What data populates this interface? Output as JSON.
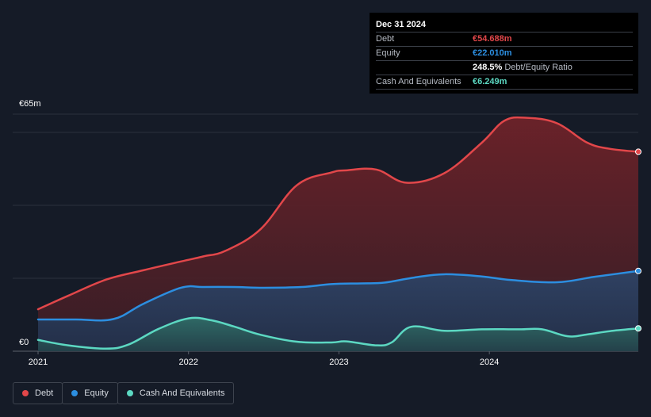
{
  "chart_data": {
    "type": "area",
    "title": "",
    "xlabel": "",
    "ylabel": "",
    "y_axis_labels": [
      "€65m",
      "€0"
    ],
    "ylim": [
      0,
      65
    ],
    "xlim": [
      2021,
      2025
    ],
    "x_ticks": [
      {
        "value": 2021,
        "label": "2021"
      },
      {
        "value": 2022,
        "label": "2022"
      },
      {
        "value": 2023,
        "label": "2023"
      },
      {
        "value": 2024,
        "label": "2024"
      }
    ],
    "grid": true,
    "legend_position": "bottom-left",
    "series": [
      {
        "name": "Debt",
        "key": "debt",
        "color": "#e2474a",
        "fill": "#5a2027",
        "points": [
          [
            2021.0,
            11.5
          ],
          [
            2021.2,
            15.2
          ],
          [
            2021.45,
            19.6
          ],
          [
            2021.7,
            22.2
          ],
          [
            2021.95,
            24.6
          ],
          [
            2022.1,
            26.0
          ],
          [
            2022.25,
            27.6
          ],
          [
            2022.48,
            33.5
          ],
          [
            2022.72,
            45.5
          ],
          [
            2022.95,
            49.0
          ],
          [
            2023.05,
            49.6
          ],
          [
            2023.25,
            49.8
          ],
          [
            2023.45,
            46.2
          ],
          [
            2023.7,
            48.8
          ],
          [
            2023.95,
            57.2
          ],
          [
            2024.1,
            63.2
          ],
          [
            2024.25,
            64.0
          ],
          [
            2024.45,
            62.5
          ],
          [
            2024.65,
            57.2
          ],
          [
            2024.8,
            55.5
          ],
          [
            2024.99,
            54.688
          ]
        ]
      },
      {
        "name": "Equity",
        "key": "equity",
        "color": "#2c8ee0",
        "fill": "#283955",
        "points": [
          [
            2021.0,
            8.7
          ],
          [
            2021.25,
            8.7
          ],
          [
            2021.5,
            8.8
          ],
          [
            2021.7,
            13.0
          ],
          [
            2021.95,
            17.4
          ],
          [
            2022.1,
            17.6
          ],
          [
            2022.3,
            17.6
          ],
          [
            2022.5,
            17.4
          ],
          [
            2022.75,
            17.6
          ],
          [
            2022.95,
            18.4
          ],
          [
            2023.15,
            18.6
          ],
          [
            2023.3,
            18.8
          ],
          [
            2023.5,
            20.2
          ],
          [
            2023.7,
            21.1
          ],
          [
            2023.95,
            20.5
          ],
          [
            2024.15,
            19.5
          ],
          [
            2024.45,
            18.9
          ],
          [
            2024.7,
            20.4
          ],
          [
            2024.99,
            22.01
          ]
        ]
      },
      {
        "name": "Cash And Equivalents",
        "key": "cash",
        "color": "#5cd8c2",
        "fill": "#2a4d4f",
        "points": [
          [
            2021.0,
            3.1
          ],
          [
            2021.2,
            1.6
          ],
          [
            2021.45,
            0.7
          ],
          [
            2021.6,
            1.8
          ],
          [
            2021.8,
            6.1
          ],
          [
            2022.0,
            9.0
          ],
          [
            2022.15,
            8.5
          ],
          [
            2022.3,
            6.8
          ],
          [
            2022.48,
            4.5
          ],
          [
            2022.72,
            2.6
          ],
          [
            2022.95,
            2.4
          ],
          [
            2023.05,
            2.7
          ],
          [
            2023.25,
            1.6
          ],
          [
            2023.35,
            2.4
          ],
          [
            2023.48,
            6.7
          ],
          [
            2023.7,
            5.6
          ],
          [
            2023.95,
            6.0
          ],
          [
            2024.2,
            6.0
          ],
          [
            2024.35,
            6.0
          ],
          [
            2024.52,
            4.1
          ],
          [
            2024.65,
            4.6
          ],
          [
            2024.8,
            5.5
          ],
          [
            2024.99,
            6.249
          ]
        ]
      }
    ]
  },
  "tooltip": {
    "date": "Dec 31 2024",
    "rows": [
      {
        "label": "Debt",
        "value": "€54.688m",
        "color": "#e2474a"
      },
      {
        "label": "Equity",
        "value": "€22.010m",
        "color": "#2c8ee0"
      },
      {
        "label": "",
        "value": "248.5%",
        "extra": "Debt/Equity Ratio",
        "color": "#ffffff"
      },
      {
        "label": "Cash And Equivalents",
        "value": "€6.249m",
        "color": "#5cd8c2"
      }
    ]
  },
  "legend": [
    {
      "label": "Debt",
      "color": "#e2474a"
    },
    {
      "label": "Equity",
      "color": "#2c8ee0"
    },
    {
      "label": "Cash And Equivalents",
      "color": "#5cd8c2"
    }
  ]
}
